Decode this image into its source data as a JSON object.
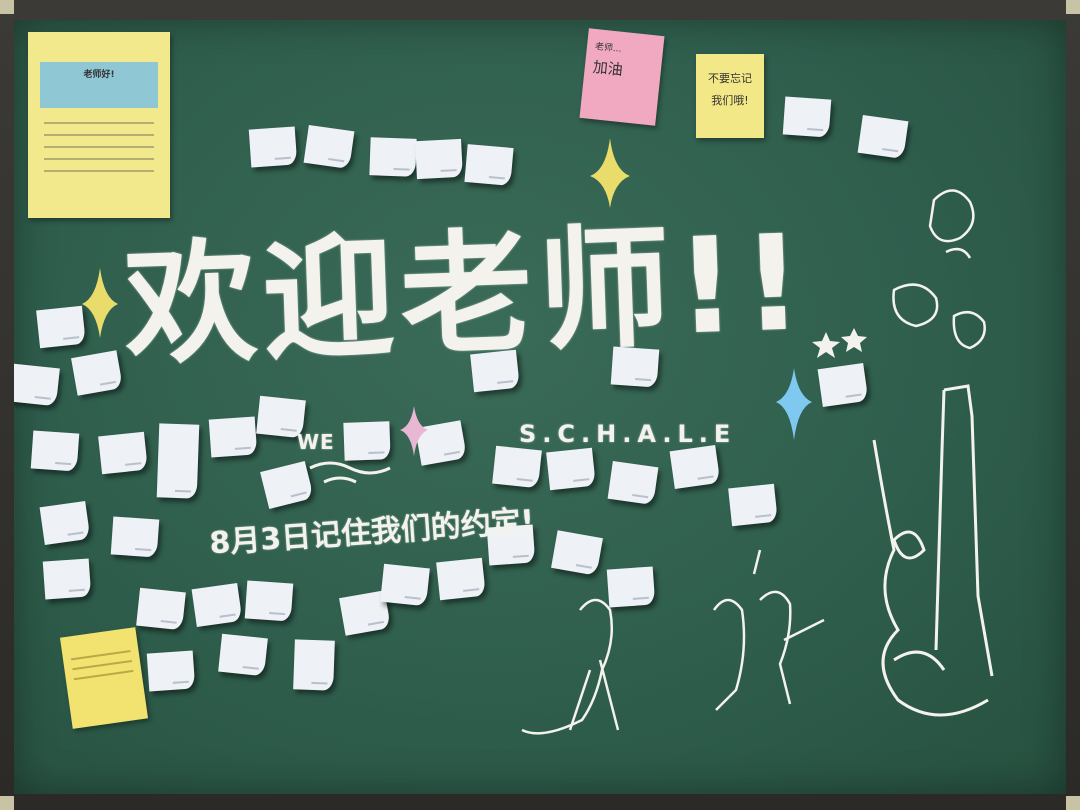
{
  "scene": "chalkboard",
  "colors": {
    "board": "#2f5e4d",
    "chalk": "#f3f2ec",
    "sticky_yellow": "#f2e98d",
    "sticky_pink": "#f1a9c1",
    "sparkle_yellow": "#e9dc6a",
    "sparkle_blue": "#7fc8f0",
    "sparkle_pink": "#e7b7d3"
  },
  "board": {
    "headline": "欢迎老师!!",
    "we_text": "WE",
    "schale_text": "S.C.H.A.L.E",
    "date_line": "8月3日记住我们的约定!"
  },
  "sticky_notes": {
    "yellow_big_banner": "老师好!",
    "pink_line1": "老师...",
    "pink_line2": "加油",
    "yellow_small_line1": "不要忘记",
    "yellow_small_line2": "我们哦!"
  },
  "icons": [
    "sparkle-icon",
    "star-icon",
    "character-doodle-icon",
    "tower-doodle-icon"
  ]
}
